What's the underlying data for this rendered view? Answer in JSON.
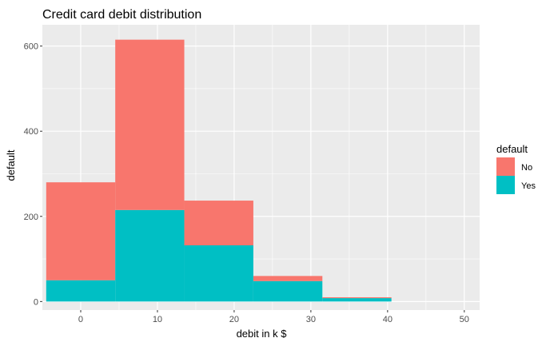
{
  "chart_data": {
    "type": "bar",
    "stacked": true,
    "title": "Credit card debit distribution",
    "xlabel": "debit in k $",
    "ylabel": "default",
    "xlim": [
      -5,
      52
    ],
    "ylim": [
      -20,
      650
    ],
    "x_ticks": [
      0,
      10,
      20,
      30,
      40,
      50
    ],
    "y_ticks": [
      0,
      200,
      400,
      600
    ],
    "bin_edges": [
      -4.5,
      4.5,
      13.5,
      22.5,
      31.5,
      40.5
    ],
    "grid": true,
    "legend": {
      "title": "default",
      "position": "right",
      "entries": [
        "No",
        "Yes"
      ]
    },
    "series": [
      {
        "name": "No",
        "color": "#F8766D",
        "values": [
          230,
          400,
          105,
          12,
          2
        ]
      },
      {
        "name": "Yes",
        "color": "#00BFC4",
        "values": [
          50,
          215,
          132,
          48,
          8
        ]
      }
    ]
  }
}
